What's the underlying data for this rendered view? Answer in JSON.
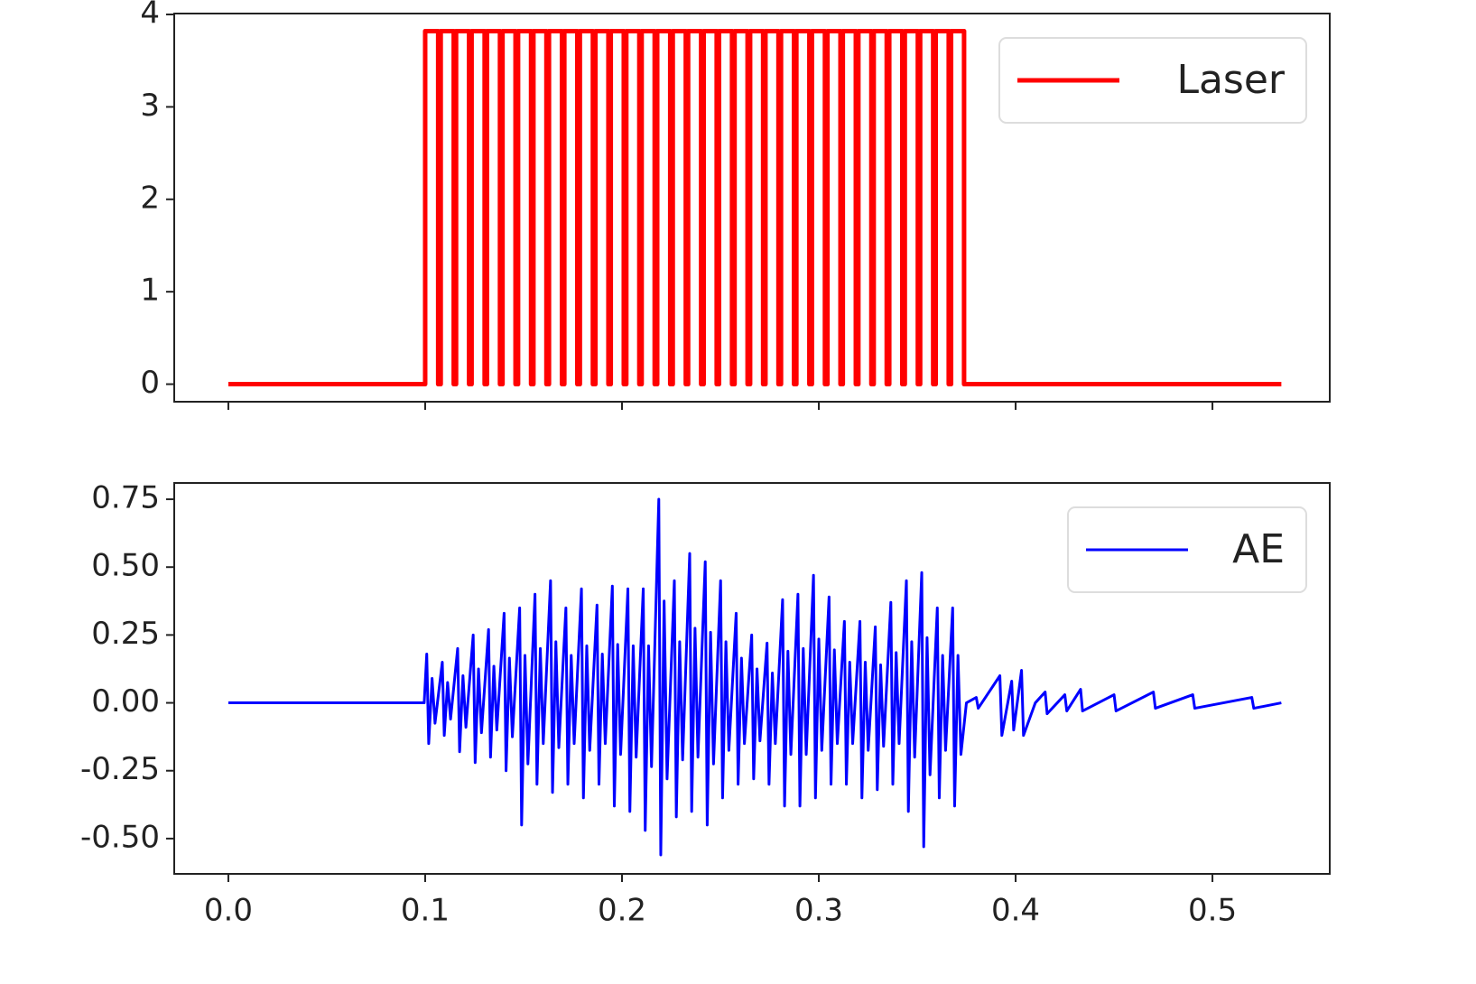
{
  "chart_data": [
    {
      "type": "line",
      "x": [
        0,
        0.1,
        0.1,
        0.1066,
        0.1066,
        0.1079,
        0.1079,
        0.1145,
        0.1145,
        0.1157,
        0.1157,
        0.1223,
        0.1223,
        0.1236,
        0.1236,
        0.1302,
        0.1302,
        0.1314,
        0.1314,
        0.138,
        0.138,
        0.1393,
        0.1393,
        0.1459,
        0.1459,
        0.1472,
        0.1472,
        0.1538,
        0.1538,
        0.155,
        0.155,
        0.1616,
        0.1616,
        0.1629,
        0.1629,
        0.1695,
        0.1695,
        0.1707,
        0.1707,
        0.1773,
        0.1773,
        0.1786,
        0.1786,
        0.1852,
        0.1852,
        0.1865,
        0.1865,
        0.1931,
        0.1931,
        0.1943,
        0.1943,
        0.2009,
        0.2009,
        0.2022,
        0.2022,
        0.2088,
        0.2088,
        0.21,
        0.21,
        0.2166,
        0.2166,
        0.2179,
        0.2179,
        0.2245,
        0.2245,
        0.2258,
        0.2258,
        0.2324,
        0.2324,
        0.2336,
        0.2336,
        0.2402,
        0.2402,
        0.2415,
        0.2415,
        0.2481,
        0.2481,
        0.2493,
        0.2493,
        0.2559,
        0.2559,
        0.2572,
        0.2572,
        0.2638,
        0.2638,
        0.2651,
        0.2651,
        0.2717,
        0.2717,
        0.2729,
        0.2729,
        0.2795,
        0.2795,
        0.2808,
        0.2808,
        0.2874,
        0.2874,
        0.2886,
        0.2886,
        0.2952,
        0.2952,
        0.2965,
        0.2965,
        0.3031,
        0.3031,
        0.3044,
        0.3044,
        0.311,
        0.311,
        0.3122,
        0.3122,
        0.3188,
        0.3188,
        0.3201,
        0.3201,
        0.3267,
        0.3267,
        0.3279,
        0.3279,
        0.3345,
        0.3345,
        0.3358,
        0.3358,
        0.3424,
        0.3424,
        0.3437,
        0.3437,
        0.3503,
        0.3503,
        0.3515,
        0.3515,
        0.3581,
        0.3581,
        0.3594,
        0.3594,
        0.366,
        0.366,
        0.3672,
        0.3672,
        0.3738,
        0.3738,
        0.535
      ],
      "series": [
        {
          "name": "Laser",
          "color": "#ff0000",
          "values": [
            0,
            0,
            3.82,
            3.82,
            0,
            0,
            3.82,
            3.82,
            0,
            0,
            3.82,
            3.82,
            0,
            0,
            3.82,
            3.82,
            0,
            0,
            3.82,
            3.82,
            0,
            0,
            3.82,
            3.82,
            0,
            0,
            3.82,
            3.82,
            0,
            0,
            3.82,
            3.82,
            0,
            0,
            3.82,
            3.82,
            0,
            0,
            3.82,
            3.82,
            0,
            0,
            3.82,
            3.82,
            0,
            0,
            3.82,
            3.82,
            0,
            0,
            3.82,
            3.82,
            0,
            0,
            3.82,
            3.82,
            0,
            0,
            3.82,
            3.82,
            0,
            0,
            3.82,
            3.82,
            0,
            0,
            3.82,
            3.82,
            0,
            0,
            3.82,
            3.82,
            0,
            0,
            3.82,
            3.82,
            0,
            0,
            3.82,
            3.82,
            0,
            0,
            3.82,
            3.82,
            0,
            0,
            3.82,
            3.82,
            0,
            0,
            3.82,
            3.82,
            0,
            0,
            3.82,
            3.82,
            0,
            0,
            3.82,
            3.82,
            0,
            0,
            3.82,
            3.82,
            0,
            0,
            3.82,
            3.82,
            0,
            0,
            3.82,
            3.82,
            0,
            0,
            3.82,
            3.82,
            0,
            0,
            3.82,
            3.82,
            0,
            0,
            3.82,
            3.82,
            0,
            0,
            3.82,
            3.82,
            0,
            0,
            3.82,
            3.82,
            0,
            0,
            3.82,
            3.82,
            0,
            0,
            3.82,
            3.82,
            0,
            0
          ]
        }
      ],
      "xlim": [
        -0.0275,
        0.5596
      ],
      "ylim": [
        -0.19,
        4.01
      ],
      "xticks": [
        0,
        0.1,
        0.2,
        0.3,
        0.4,
        0.5
      ],
      "xtick_labels": false,
      "yticks": [
        0,
        1,
        2,
        3,
        4
      ],
      "legend": "upper right"
    },
    {
      "type": "line",
      "x": [
        0,
        0.0995,
        0.1008,
        0.1018,
        0.1035,
        0.105,
        0.1087,
        0.1097,
        0.1114,
        0.1129,
        0.1165,
        0.1175,
        0.1192,
        0.1207,
        0.1244,
        0.1254,
        0.1271,
        0.1286,
        0.1322,
        0.1332,
        0.1349,
        0.1364,
        0.1401,
        0.1411,
        0.1428,
        0.1443,
        0.148,
        0.149,
        0.1507,
        0.1522,
        0.1558,
        0.1568,
        0.1585,
        0.16,
        0.1637,
        0.1647,
        0.1664,
        0.1679,
        0.1715,
        0.1725,
        0.1742,
        0.1757,
        0.1794,
        0.1804,
        0.1821,
        0.1836,
        0.1873,
        0.1883,
        0.19,
        0.1915,
        0.1951,
        0.1961,
        0.1978,
        0.1993,
        0.203,
        0.204,
        0.2057,
        0.2072,
        0.2108,
        0.2118,
        0.2135,
        0.215,
        0.2187,
        0.2197,
        0.2214,
        0.2229,
        0.2266,
        0.2276,
        0.2293,
        0.2308,
        0.2344,
        0.2354,
        0.2371,
        0.2386,
        0.2423,
        0.2433,
        0.245,
        0.2465,
        0.2501,
        0.2511,
        0.2528,
        0.2543,
        0.258,
        0.259,
        0.2607,
        0.2622,
        0.2659,
        0.2669,
        0.2686,
        0.2701,
        0.2737,
        0.2747,
        0.2764,
        0.2779,
        0.2816,
        0.2826,
        0.2843,
        0.2858,
        0.2894,
        0.2904,
        0.2921,
        0.2936,
        0.2973,
        0.2983,
        0.3,
        0.3015,
        0.3052,
        0.3062,
        0.3079,
        0.3094,
        0.313,
        0.314,
        0.3157,
        0.3172,
        0.3209,
        0.3219,
        0.3236,
        0.3251,
        0.3287,
        0.3297,
        0.3314,
        0.3329,
        0.3366,
        0.3376,
        0.3393,
        0.3408,
        0.3445,
        0.3455,
        0.3472,
        0.3487,
        0.3523,
        0.3533,
        0.355,
        0.3565,
        0.3602,
        0.3612,
        0.3629,
        0.3644,
        0.368,
        0.369,
        0.3707,
        0.3722,
        0.375,
        0.38,
        0.381,
        0.392,
        0.393,
        0.398,
        0.399,
        0.403,
        0.404,
        0.41,
        0.415,
        0.416,
        0.425,
        0.426,
        0.433,
        0.434,
        0.45,
        0.451,
        0.47,
        0.471,
        0.49,
        0.491,
        0.52,
        0.521,
        0.535
      ],
      "series": [
        {
          "name": "AE",
          "color": "#0000ff",
          "values": [
            0,
            0,
            0.18,
            -0.15,
            0.09,
            -0.075,
            0.15,
            -0.12,
            0.075,
            -0.06,
            0.2,
            -0.18,
            0.1,
            -0.09,
            0.25,
            -0.22,
            0.125,
            -0.11,
            0.27,
            -0.2,
            0.135,
            -0.1,
            0.33,
            -0.25,
            0.165,
            -0.125,
            0.35,
            -0.45,
            0.175,
            -0.225,
            0.4,
            -0.3,
            0.2,
            -0.15,
            0.45,
            -0.33,
            0.225,
            -0.165,
            0.35,
            -0.3,
            0.175,
            -0.15,
            0.42,
            -0.35,
            0.21,
            -0.175,
            0.36,
            -0.3,
            0.18,
            -0.15,
            0.43,
            -0.38,
            0.215,
            -0.19,
            0.42,
            -0.4,
            0.21,
            -0.2,
            0.42,
            -0.47,
            0.21,
            -0.235,
            0.75,
            -0.56,
            0.375,
            -0.28,
            0.45,
            -0.42,
            0.225,
            -0.21,
            0.55,
            -0.4,
            0.275,
            -0.2,
            0.52,
            -0.45,
            0.26,
            -0.225,
            0.45,
            -0.35,
            0.225,
            -0.175,
            0.33,
            -0.3,
            0.165,
            -0.15,
            0.25,
            -0.28,
            0.125,
            -0.14,
            0.22,
            -0.3,
            0.11,
            -0.15,
            0.38,
            -0.38,
            0.19,
            -0.19,
            0.4,
            -0.38,
            0.2,
            -0.19,
            0.47,
            -0.35,
            0.235,
            -0.175,
            0.39,
            -0.3,
            0.195,
            -0.15,
            0.3,
            -0.3,
            0.15,
            -0.15,
            0.3,
            -0.35,
            0.15,
            -0.175,
            0.28,
            -0.32,
            0.14,
            -0.16,
            0.37,
            -0.3,
            0.185,
            -0.15,
            0.45,
            -0.4,
            0.225,
            -0.2,
            0.48,
            -0.53,
            0.24,
            -0.265,
            0.35,
            -0.35,
            0.175,
            -0.175,
            0.35,
            -0.38,
            0.175,
            -0.19,
            0,
            0.02,
            -0.02,
            0.1,
            -0.12,
            0.08,
            -0.1,
            0.12,
            -0.12,
            0,
            0.04,
            -0.04,
            0.03,
            -0.03,
            0.05,
            -0.03,
            0.03,
            -0.03,
            0.04,
            -0.02,
            0.03,
            -0.02,
            0.02,
            -0.02,
            0
          ]
        }
      ],
      "xlim": [
        -0.0275,
        0.5596
      ],
      "ylim": [
        -0.63,
        0.81
      ],
      "xticks": [
        {
          "value": 0,
          "label": "0.0"
        },
        0.1,
        0.2,
        0.3,
        0.4,
        0.5
      ],
      "xtick_labels": true,
      "yticks": [
        {
          "value": -0.5,
          "label": "-0.50"
        },
        -0.25,
        {
          "value": 0,
          "label": "0.00"
        },
        0.25,
        {
          "value": 0.5,
          "label": "0.50"
        },
        0.75
      ],
      "legend": "upper right"
    }
  ]
}
